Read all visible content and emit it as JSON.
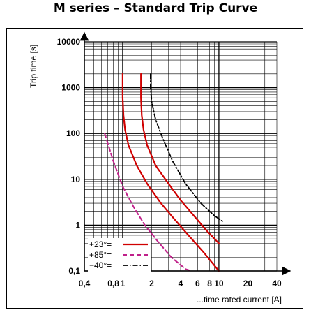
{
  "chart_data": {
    "type": "line",
    "title": "M series – Standard Trip Curve",
    "xlabel": "...time rated current [A]",
    "ylabel": "Trip time [s]",
    "xscale": "log",
    "yscale": "log",
    "xlim": [
      0.4,
      40
    ],
    "ylim": [
      0.1,
      10000
    ],
    "x_ticks": [
      0.4,
      0.8,
      1,
      2,
      4,
      6,
      8,
      10,
      20,
      40
    ],
    "x_tick_labels": [
      "0,4",
      "0,8",
      "1",
      "2",
      "4",
      "6",
      "8",
      "10",
      "20",
      "40"
    ],
    "y_ticks": [
      0.1,
      1,
      10,
      100,
      1000,
      10000
    ],
    "y_tick_labels": [
      "0,1",
      "1",
      "10",
      "100",
      "1000",
      "10000"
    ],
    "grid": true,
    "legend_position": "bottom-left",
    "series": [
      {
        "name": "+23°=",
        "color": "#d00000",
        "style": "solid",
        "width": 2.2,
        "x": [
          1.0,
          1.0,
          1.02,
          1.06,
          1.15,
          1.4,
          1.8,
          2.5,
          3.5,
          5,
          7,
          10
        ],
        "y": [
          2000,
          600,
          250,
          120,
          55,
          20,
          8,
          3,
          1.3,
          0.55,
          0.25,
          0.1
        ]
      },
      {
        "name": "",
        "color": "#d00000",
        "style": "solid",
        "width": 2.2,
        "x": [
          1.55,
          1.55,
          1.58,
          1.65,
          1.8,
          2.2,
          3,
          4,
          5.5,
          7.5,
          10
        ],
        "y": [
          2000,
          600,
          250,
          120,
          55,
          20,
          8,
          3.5,
          1.6,
          0.75,
          0.4
        ]
      },
      {
        "name": "+85°=",
        "color": "#c0208a",
        "style": "dashed",
        "width": 2,
        "x": [
          0.65,
          0.8,
          1.0,
          1.3,
          1.7,
          2.3,
          3.2,
          4.5,
          5.2
        ],
        "y": [
          100,
          25,
          7,
          2.5,
          1.0,
          0.45,
          0.2,
          0.11,
          0.1
        ]
      },
      {
        "name": "−40°=",
        "color": "#000000",
        "style": "dashdot",
        "width": 1.8,
        "x": [
          1.95,
          1.95,
          2.0,
          2.2,
          2.6,
          3.3,
          4.5,
          6.5,
          9,
          11
        ],
        "y": [
          2000,
          1000,
          500,
          200,
          80,
          25,
          8,
          3,
          1.6,
          1.2
        ]
      }
    ]
  }
}
